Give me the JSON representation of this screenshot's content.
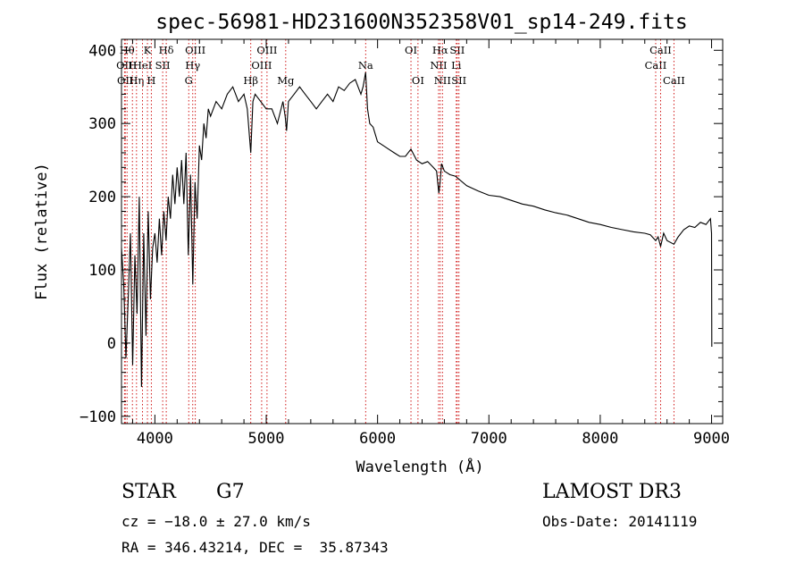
{
  "chart_data": {
    "type": "line",
    "title": "spec-56981-HD231600N352358V01_sp14-249.fits",
    "xlabel": "Wavelength (Å)",
    "ylabel": "Flux (relative)",
    "xlim": [
      3700,
      9100
    ],
    "ylim": [
      -110,
      415
    ],
    "x_ticks": [
      4000,
      5000,
      6000,
      7000,
      8000,
      9000
    ],
    "y_ticks": [
      -100,
      0,
      100,
      200,
      300,
      400
    ],
    "series": [
      {
        "name": "spectrum",
        "x": [
          3700,
          3720,
          3740,
          3760,
          3780,
          3800,
          3820,
          3840,
          3860,
          3880,
          3900,
          3920,
          3940,
          3960,
          3980,
          4000,
          4020,
          4040,
          4060,
          4080,
          4100,
          4120,
          4140,
          4160,
          4180,
          4200,
          4220,
          4240,
          4260,
          4280,
          4300,
          4320,
          4340,
          4360,
          4380,
          4400,
          4420,
          4440,
          4460,
          4480,
          4500,
          4550,
          4600,
          4650,
          4700,
          4750,
          4800,
          4830,
          4861,
          4880,
          4900,
          4950,
          5000,
          5050,
          5100,
          5150,
          5170,
          5183,
          5200,
          5250,
          5300,
          5350,
          5400,
          5450,
          5500,
          5550,
          5600,
          5650,
          5700,
          5750,
          5800,
          5850,
          5870,
          5893,
          5910,
          5930,
          5960,
          6000,
          6050,
          6100,
          6150,
          6200,
          6250,
          6300,
          6350,
          6400,
          6450,
          6500,
          6530,
          6550,
          6563,
          6575,
          6600,
          6650,
          6700,
          6800,
          6900,
          7000,
          7100,
          7200,
          7300,
          7400,
          7500,
          7600,
          7700,
          7800,
          7900,
          8000,
          8100,
          8200,
          8300,
          8400,
          8450,
          8498,
          8520,
          8542,
          8570,
          8600,
          8662,
          8700,
          8750,
          8800,
          8850,
          8900,
          8950,
          8990,
          9000,
          9002
        ],
        "y": [
          130,
          80,
          -20,
          60,
          150,
          -30,
          120,
          40,
          200,
          -60,
          150,
          10,
          180,
          60,
          130,
          150,
          110,
          170,
          120,
          180,
          140,
          200,
          170,
          230,
          190,
          240,
          200,
          250,
          190,
          260,
          120,
          230,
          80,
          220,
          170,
          270,
          250,
          300,
          280,
          320,
          310,
          330,
          320,
          340,
          350,
          330,
          340,
          320,
          260,
          330,
          340,
          330,
          320,
          320,
          300,
          330,
          310,
          290,
          330,
          340,
          350,
          340,
          330,
          320,
          330,
          340,
          330,
          350,
          345,
          355,
          360,
          340,
          350,
          370,
          320,
          300,
          295,
          275,
          270,
          265,
          260,
          255,
          255,
          265,
          250,
          245,
          248,
          240,
          235,
          205,
          222,
          245,
          235,
          230,
          228,
          215,
          208,
          202,
          200,
          195,
          190,
          187,
          182,
          178,
          175,
          170,
          165,
          162,
          158,
          155,
          152,
          150,
          148,
          140,
          145,
          132,
          150,
          140,
          135,
          145,
          155,
          160,
          158,
          165,
          162,
          170,
          150,
          -5
        ]
      }
    ],
    "line_markers": [
      {
        "wl": 3727,
        "label": "OII",
        "row": 2
      },
      {
        "wl": 3734,
        "label": "OII",
        "row": 3
      },
      {
        "wl": 3750,
        "label": "Hθ",
        "row": 1
      },
      {
        "wl": 3798,
        "label": "H",
        "row": 2
      },
      {
        "wl": 3835,
        "label": "Hη",
        "row": 3
      },
      {
        "wl": 3889,
        "label": "HeI",
        "row": 2
      },
      {
        "wl": 3933,
        "label": "K",
        "row": 1
      },
      {
        "wl": 3968,
        "label": "H",
        "row": 3
      },
      {
        "wl": 4070,
        "label": "SII",
        "row": 2
      },
      {
        "wl": 4102,
        "label": "Hδ",
        "row": 1
      },
      {
        "wl": 4304,
        "label": "G",
        "row": 3
      },
      {
        "wl": 4340,
        "label": "Hγ",
        "row": 2
      },
      {
        "wl": 4363,
        "label": "OIII",
        "row": 1
      },
      {
        "wl": 4861,
        "label": "Hβ",
        "row": 3
      },
      {
        "wl": 4959,
        "label": "OIII",
        "row": 2
      },
      {
        "wl": 5007,
        "label": "OIII",
        "row": 1
      },
      {
        "wl": 5175,
        "label": "Mg",
        "row": 3
      },
      {
        "wl": 5893,
        "label": "Na",
        "row": 2
      },
      {
        "wl": 6300,
        "label": "OI",
        "row": 1
      },
      {
        "wl": 6363,
        "label": "OI",
        "row": 3
      },
      {
        "wl": 6548,
        "label": "NII",
        "row": 2
      },
      {
        "wl": 6563,
        "label": "Hα",
        "row": 1
      },
      {
        "wl": 6583,
        "label": "NII",
        "row": 3
      },
      {
        "wl": 6707,
        "label": "Li",
        "row": 2
      },
      {
        "wl": 6716,
        "label": "SII",
        "row": 1
      },
      {
        "wl": 6731,
        "label": "SII",
        "row": 3
      },
      {
        "wl": 8498,
        "label": "CaII",
        "row": 2
      },
      {
        "wl": 8542,
        "label": "CaII",
        "row": 1
      },
      {
        "wl": 8662,
        "label": "CaII",
        "row": 3
      }
    ]
  },
  "info": {
    "object_type": "STAR",
    "subclass": "G7",
    "survey": "LAMOST DR3",
    "redshift": "cz = −18.0 ± 27.0 km/s",
    "obs_date": "Obs-Date: 20141119",
    "coords": "RA = 346.43214, DEC =  35.87343"
  }
}
